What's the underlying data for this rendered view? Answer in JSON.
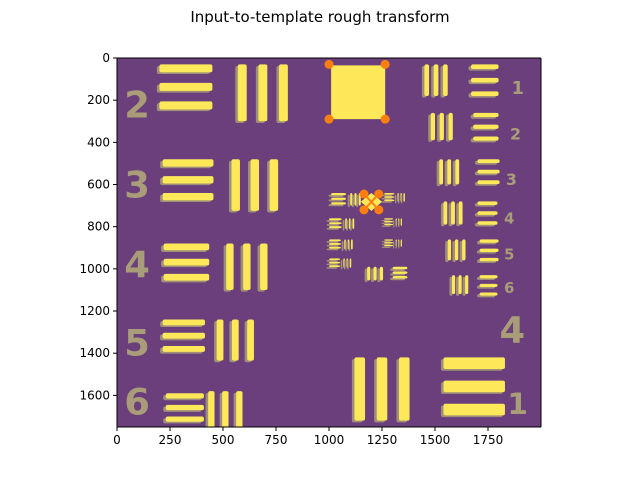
{
  "chart_data": {
    "type": "heatmap",
    "title": "Input-to-template rough transform",
    "xlabel": "",
    "ylabel": "",
    "xlim": [
      0,
      2000
    ],
    "ylim": [
      1750,
      0
    ],
    "x_ticks": [
      0,
      250,
      500,
      750,
      1000,
      1250,
      1500,
      1750
    ],
    "y_ticks": [
      0,
      200,
      400,
      600,
      800,
      1000,
      1200,
      1400,
      1600
    ],
    "grid": false,
    "legend": "none",
    "colors": {
      "background": "#6a3f7c",
      "bars": "#fde85a",
      "ghost": "#a89d78",
      "markers": "#ff7f0e"
    },
    "group_labels": [
      {
        "text": "2",
        "x": 95,
        "y": 220,
        "size": 175
      },
      {
        "text": "3",
        "x": 95,
        "y": 600,
        "size": 175
      },
      {
        "text": "4",
        "x": 95,
        "y": 980,
        "size": 175
      },
      {
        "text": "5",
        "x": 95,
        "y": 1350,
        "size": 175
      },
      {
        "text": "6",
        "x": 95,
        "y": 1630,
        "size": 175
      },
      {
        "text": "1",
        "x": 1890,
        "y": 140,
        "size": 85
      },
      {
        "text": "2",
        "x": 1880,
        "y": 360,
        "size": 75
      },
      {
        "text": "3",
        "x": 1860,
        "y": 575,
        "size": 75
      },
      {
        "text": "4",
        "x": 1850,
        "y": 760,
        "size": 70
      },
      {
        "text": "5",
        "x": 1850,
        "y": 930,
        "size": 70
      },
      {
        "text": "6",
        "x": 1850,
        "y": 1090,
        "size": 70
      },
      {
        "text": "4",
        "x": 1865,
        "y": 1290,
        "size": 175
      },
      {
        "text": "1",
        "x": 1890,
        "y": 1640,
        "size": 140
      }
    ],
    "corner_points": [
      {
        "x": 1000,
        "y": 30
      },
      {
        "x": 1265,
        "y": 30
      },
      {
        "x": 1000,
        "y": 290
      },
      {
        "x": 1265,
        "y": 290
      }
    ],
    "center_points": [
      {
        "x": 1165,
        "y": 645
      },
      {
        "x": 1235,
        "y": 645
      },
      {
        "x": 1165,
        "y": 720
      },
      {
        "x": 1235,
        "y": 720
      }
    ]
  }
}
